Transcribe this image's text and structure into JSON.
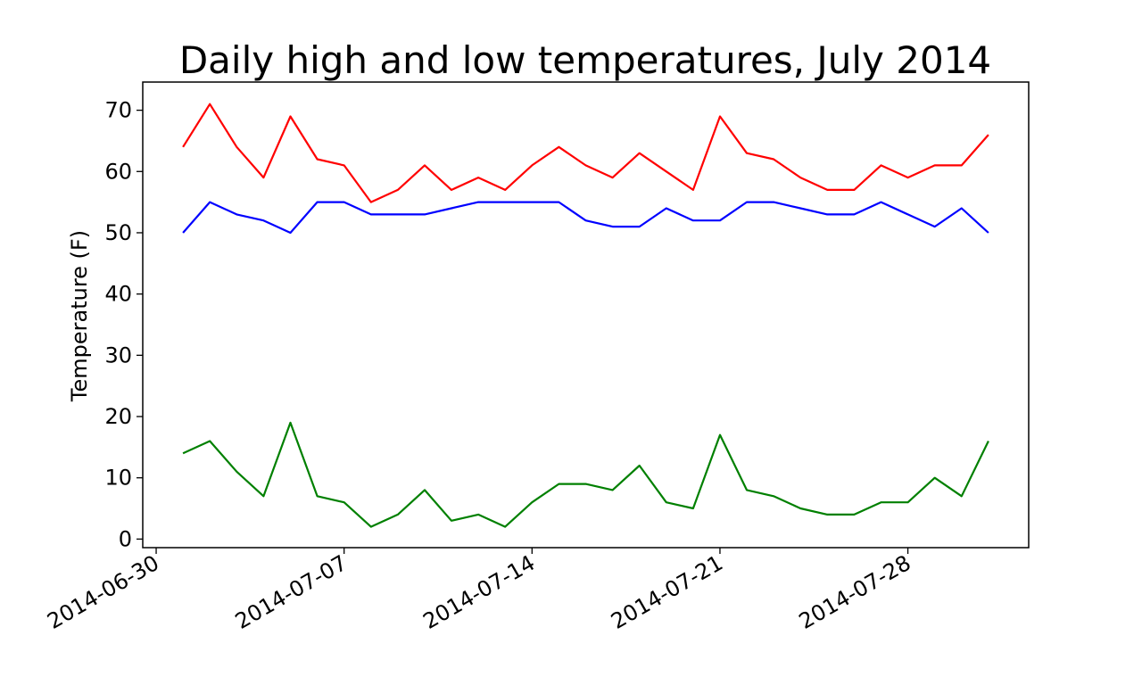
{
  "chart_data": {
    "type": "line",
    "title": "Daily high and low temperatures, July 2014",
    "xlabel": "",
    "ylabel": "Temperature (F)",
    "x": [
      "2014-07-01",
      "2014-07-02",
      "2014-07-03",
      "2014-07-04",
      "2014-07-05",
      "2014-07-06",
      "2014-07-07",
      "2014-07-08",
      "2014-07-09",
      "2014-07-10",
      "2014-07-11",
      "2014-07-12",
      "2014-07-13",
      "2014-07-14",
      "2014-07-15",
      "2014-07-16",
      "2014-07-17",
      "2014-07-18",
      "2014-07-19",
      "2014-07-20",
      "2014-07-21",
      "2014-07-22",
      "2014-07-23",
      "2014-07-24",
      "2014-07-25",
      "2014-07-26",
      "2014-07-27",
      "2014-07-28",
      "2014-07-29",
      "2014-07-30",
      "2014-07-31"
    ],
    "series": [
      {
        "color": "#ff0000",
        "values": [
          64,
          71,
          64,
          59,
          69,
          62,
          61,
          55,
          57,
          61,
          57,
          59,
          57,
          61,
          64,
          61,
          59,
          63,
          60,
          57,
          69,
          63,
          62,
          59,
          57,
          57,
          61,
          59,
          61,
          61,
          66
        ]
      },
      {
        "color": "#0000ff",
        "values": [
          50,
          55,
          53,
          52,
          50,
          55,
          55,
          53,
          53,
          53,
          54,
          55,
          55,
          55,
          55,
          52,
          51,
          51,
          54,
          52,
          52,
          55,
          55,
          54,
          53,
          53,
          55,
          53,
          51,
          54,
          50
        ]
      },
      {
        "color": "#008000",
        "values": [
          14,
          16,
          11,
          7,
          19,
          7,
          6,
          2,
          4,
          8,
          3,
          4,
          2,
          6,
          9,
          9,
          8,
          12,
          6,
          5,
          17,
          8,
          7,
          5,
          4,
          4,
          6,
          6,
          10,
          7,
          16
        ]
      }
    ],
    "x_ticks": [
      "2014-06-30",
      "2014-07-07",
      "2014-07-14",
      "2014-07-21",
      "2014-07-28"
    ],
    "y_ticks": [
      "0",
      "10",
      "20",
      "30",
      "40",
      "50",
      "60",
      "70"
    ],
    "xlim": [
      "2014-06-29.5",
      "2014-08-01.5"
    ],
    "ylim": [
      -1.4,
      74.6
    ],
    "grid": false
  }
}
